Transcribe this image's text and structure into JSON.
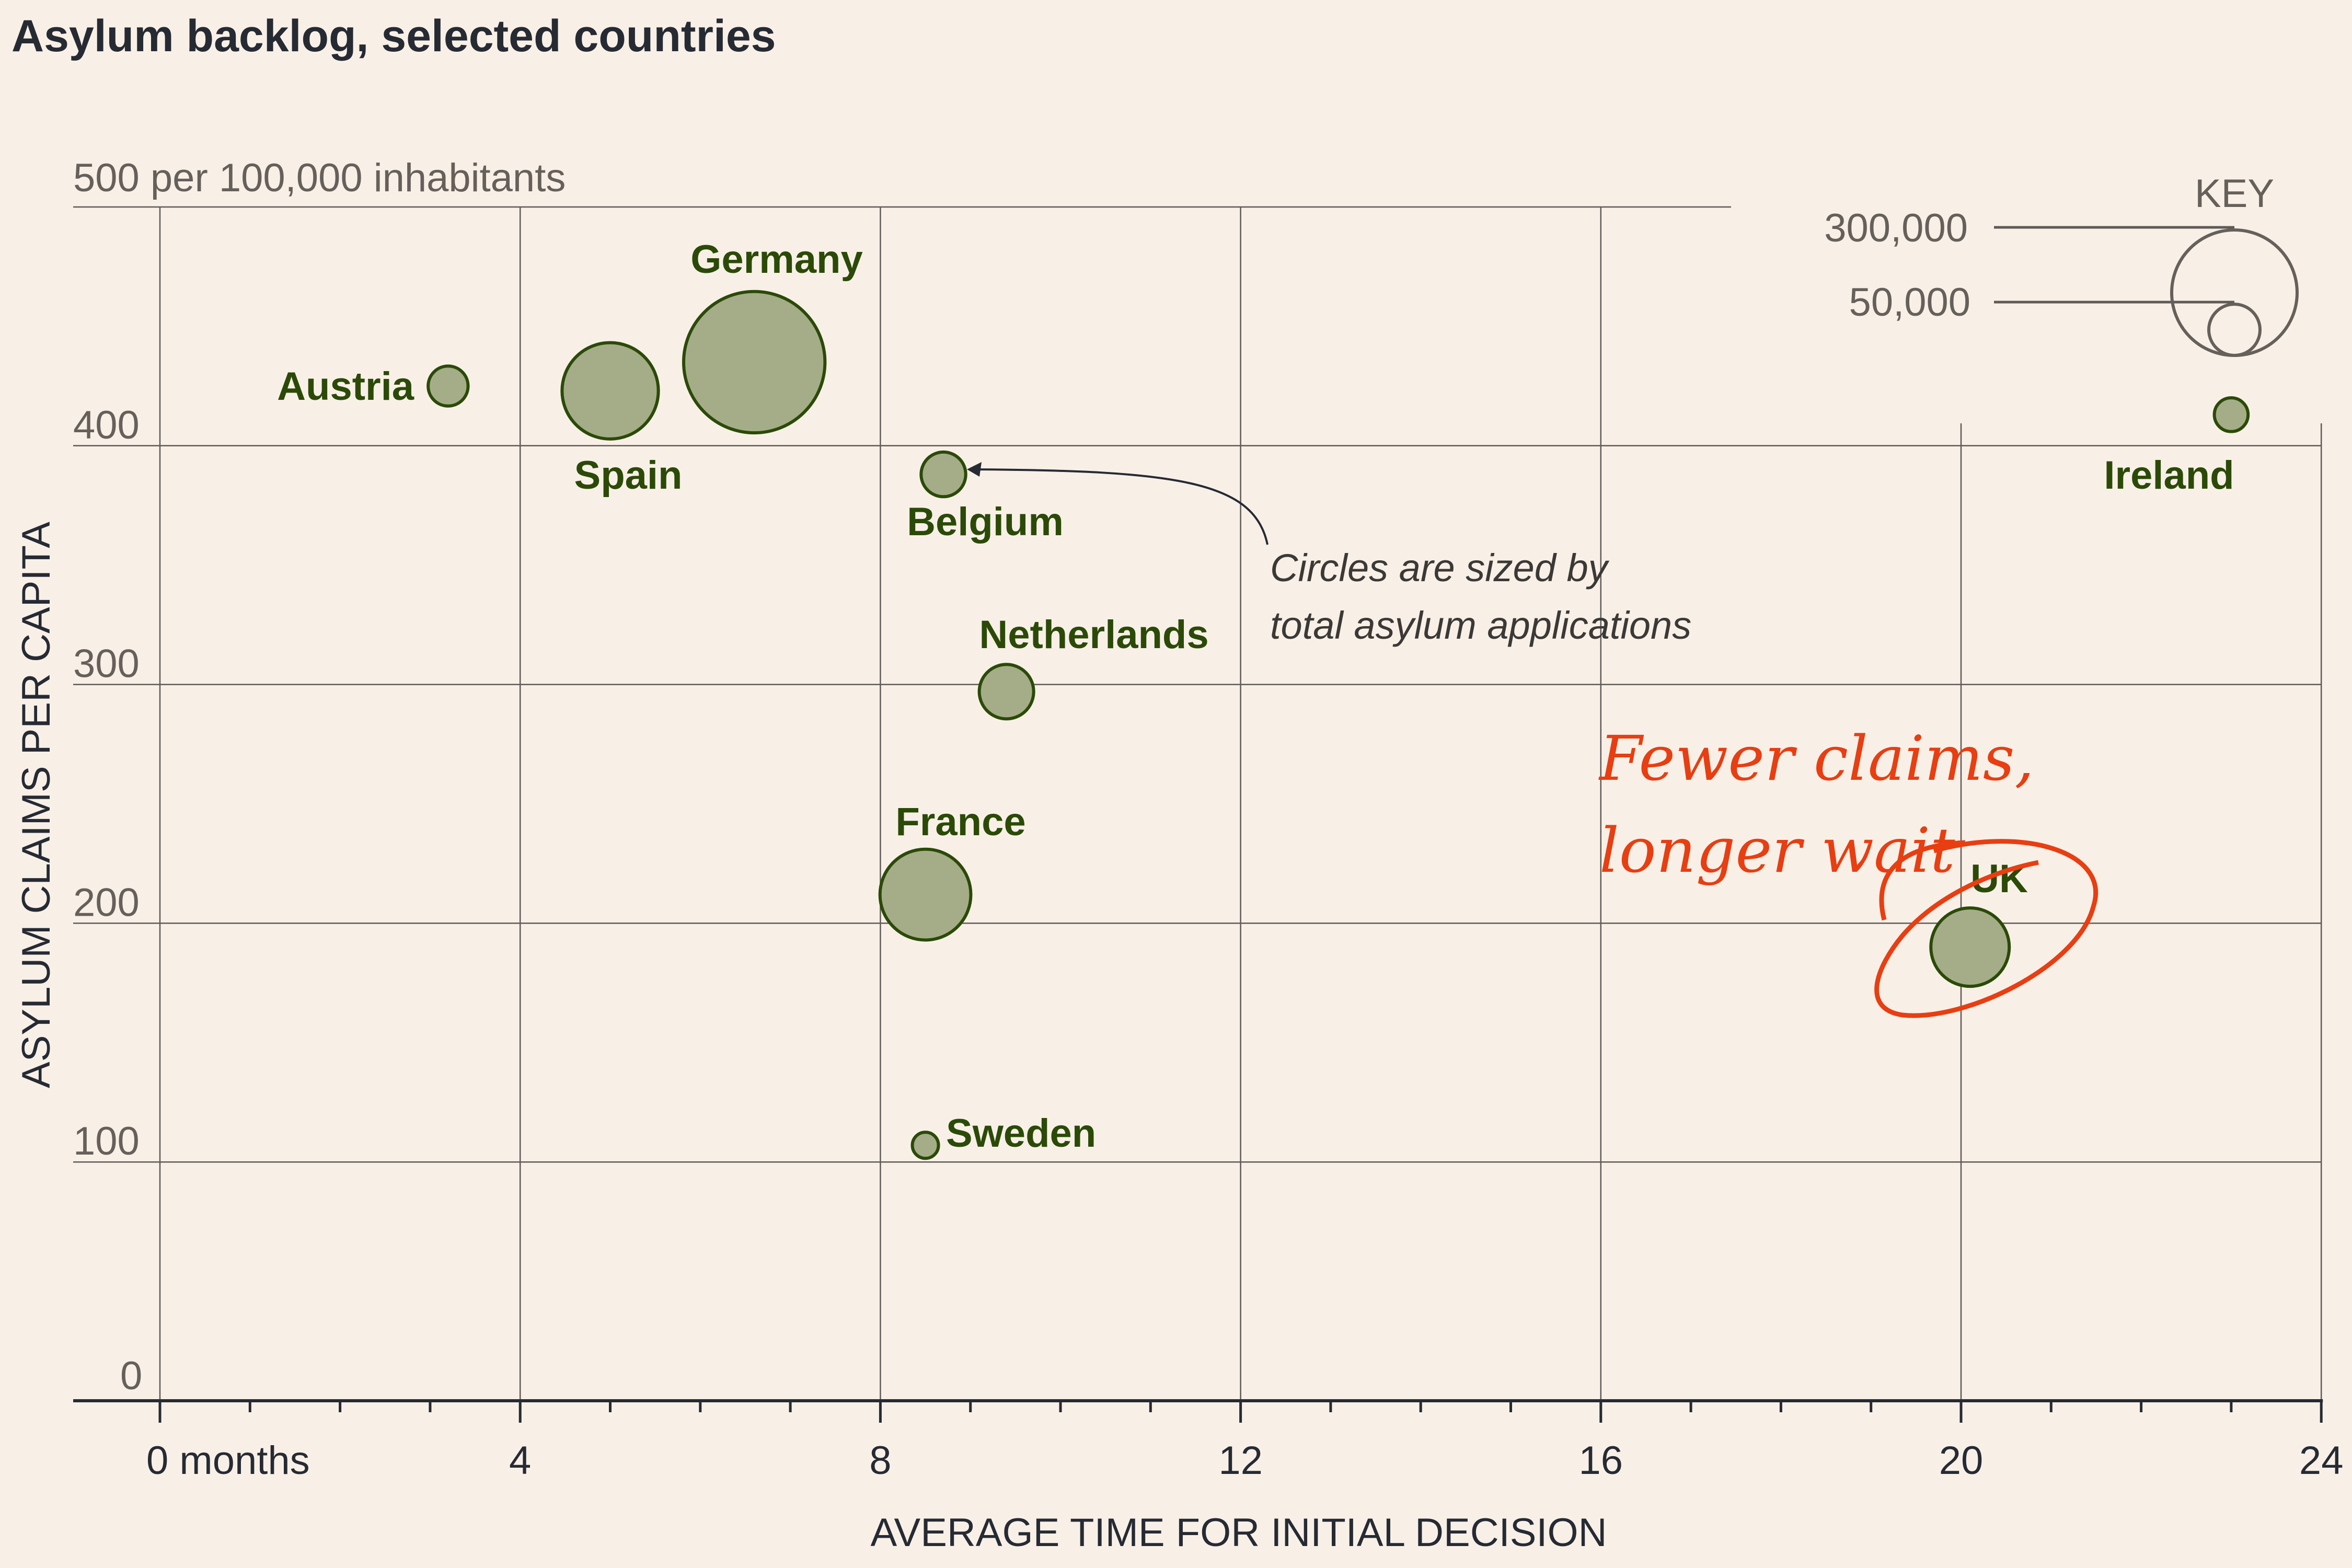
{
  "chart_data": {
    "type": "scatter",
    "title": "Asylum backlog, selected countries",
    "ylabel": "ASYLUM CLAIMS PER CAPITA",
    "xlabel": "AVERAGE TIME FOR INITIAL DECISION",
    "y_unit_label": "500 per 100,000 inhabitants",
    "xlim": [
      -1,
      24
    ],
    "ylim": [
      0,
      500
    ],
    "x_ticks": [
      "0 months",
      "4",
      "8",
      "12",
      "16",
      "20",
      "24"
    ],
    "y_ticks": [
      "0",
      "100",
      "200",
      "300",
      "400"
    ],
    "size_measure": "total asylum applications",
    "points": [
      {
        "name": "Austria",
        "x": 3.2,
        "y": 425,
        "size": 28000
      },
      {
        "name": "Spain",
        "x": 5.0,
        "y": 423,
        "size": 163000
      },
      {
        "name": "Germany",
        "x": 6.6,
        "y": 435,
        "size": 351000
      },
      {
        "name": "Belgium",
        "x": 8.7,
        "y": 388,
        "size": 35000
      },
      {
        "name": "Netherlands",
        "x": 9.4,
        "y": 297,
        "size": 52000
      },
      {
        "name": "France",
        "x": 8.5,
        "y": 212,
        "size": 145000
      },
      {
        "name": "Sweden",
        "x": 8.5,
        "y": 107,
        "size": 12000
      },
      {
        "name": "Ireland",
        "x": 23.0,
        "y": 413,
        "size": 20000
      },
      {
        "name": "UK",
        "x": 20.1,
        "y": 190,
        "size": 108000
      }
    ],
    "key": {
      "title": "KEY",
      "entries": [
        {
          "label": "300,000",
          "value": 300000
        },
        {
          "label": "50,000",
          "value": 50000
        }
      ]
    },
    "annotations": {
      "note": [
        "Circles are sized by",
        "total asylum applications"
      ],
      "handwritten": [
        "Fewer claims,",
        "longer wait"
      ]
    }
  },
  "colors": {
    "background": "#f8f0e7",
    "bubble_fill": "#a5ad88",
    "bubble_stroke": "#2b4a08",
    "highlight": "#e83e12"
  }
}
